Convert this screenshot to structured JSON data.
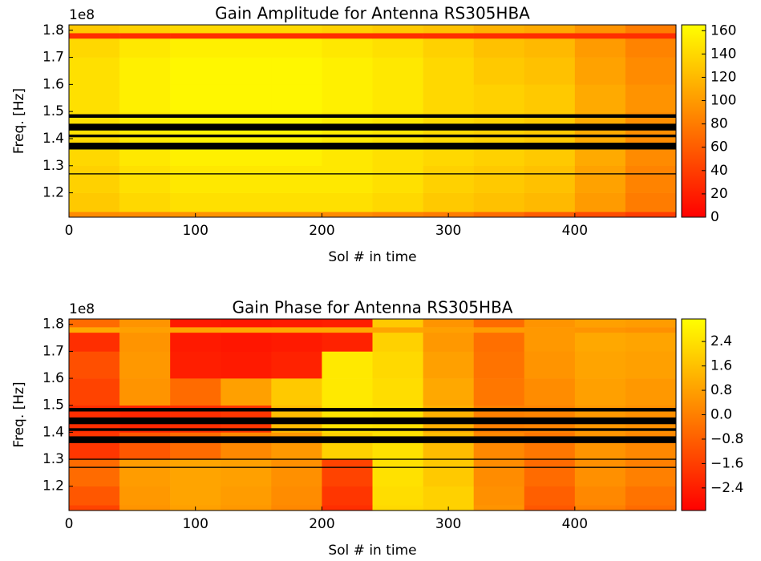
{
  "chart_data": [
    {
      "type": "heatmap",
      "title": "Gain Amplitude for Antenna RS305HBA",
      "x_label": "Sol # in time",
      "y_label": "Freq. [Hz]",
      "y_offset_label": "1e8",
      "xlim": [
        0,
        480
      ],
      "ylim": [
        1.11,
        1.82
      ],
      "xticks": [
        0,
        100,
        200,
        300,
        400
      ],
      "yticks": [
        1.2,
        1.3,
        1.4,
        1.5,
        1.6,
        1.7,
        1.8
      ],
      "clim": [
        0,
        165
      ],
      "cticks": [
        0,
        20,
        40,
        60,
        80,
        100,
        120,
        140,
        160
      ],
      "colormap": [
        "#ff0000",
        "#ffff00"
      ],
      "xbins": [
        0,
        40,
        80,
        120,
        160,
        200,
        240,
        280,
        320,
        360,
        400,
        440,
        480
      ],
      "ybins": [
        1.11,
        1.13,
        1.2,
        1.3,
        1.4,
        1.5,
        1.6,
        1.7,
        1.77,
        1.79,
        1.82
      ],
      "values": [
        [
          90,
          90,
          95,
          95,
          95,
          90,
          85,
          80,
          70,
          60,
          50,
          40
        ],
        [
          130,
          140,
          145,
          145,
          145,
          145,
          140,
          130,
          125,
          120,
          100,
          80
        ],
        [
          135,
          145,
          150,
          150,
          150,
          150,
          145,
          135,
          130,
          125,
          105,
          85
        ],
        [
          140,
          150,
          155,
          155,
          155,
          150,
          145,
          140,
          135,
          130,
          110,
          90
        ],
        [
          145,
          152,
          158,
          158,
          158,
          152,
          148,
          140,
          135,
          130,
          110,
          92
        ],
        [
          145,
          155,
          160,
          160,
          160,
          155,
          150,
          140,
          135,
          130,
          110,
          95
        ],
        [
          145,
          155,
          160,
          160,
          160,
          155,
          150,
          140,
          130,
          125,
          105,
          90
        ],
        [
          140,
          150,
          155,
          155,
          155,
          150,
          145,
          135,
          125,
          120,
          100,
          85
        ],
        [
          30,
          30,
          30,
          30,
          30,
          30,
          30,
          30,
          30,
          30,
          30,
          30
        ],
        [
          130,
          135,
          140,
          140,
          140,
          135,
          130,
          125,
          115,
          110,
          95,
          80
        ]
      ],
      "flagged_bands": [
        [
          1.36,
          1.385
        ],
        [
          1.405,
          1.415
        ],
        [
          1.43,
          1.455
        ],
        [
          1.477,
          1.49
        ],
        [
          1.268,
          1.272
        ]
      ],
      "flag_color": "#000000"
    },
    {
      "type": "heatmap",
      "title": "Gain Phase for Antenna RS305HBA",
      "x_label": "Sol # in time",
      "y_label": "Freq. [Hz]",
      "y_offset_label": "1e8",
      "xlim": [
        0,
        480
      ],
      "ylim": [
        1.11,
        1.82
      ],
      "xticks": [
        0,
        100,
        200,
        300,
        400
      ],
      "yticks": [
        1.2,
        1.3,
        1.4,
        1.5,
        1.6,
        1.7,
        1.8
      ],
      "clim": [
        -3.14,
        3.14
      ],
      "cticks": [
        2.4,
        1.6,
        0.8,
        {
          "value": 0,
          "label": "0.0"
        },
        {
          "value": -0.8,
          "label": "−0.8"
        },
        {
          "value": -1.6,
          "label": "−1.6"
        },
        {
          "value": -2.4,
          "label": "−2.4"
        }
      ],
      "colormap": [
        "#ff0000",
        "#ffff00"
      ],
      "xbins": [
        0,
        40,
        80,
        120,
        160,
        200,
        240,
        280,
        320,
        360,
        400,
        440,
        480
      ],
      "ybins": [
        1.11,
        1.13,
        1.2,
        1.3,
        1.4,
        1.5,
        1.6,
        1.7,
        1.77,
        1.79,
        1.82
      ],
      "values": [
        [
          -1.5,
          0.5,
          0.8,
          0.6,
          0.2,
          -2.0,
          2.2,
          2.0,
          0.5,
          -1.0,
          0.0,
          -0.5
        ],
        [
          -1.0,
          0.6,
          0.9,
          0.7,
          0.3,
          -1.8,
          2.3,
          2.0,
          0.4,
          -0.8,
          0.2,
          -0.3
        ],
        [
          -0.5,
          0.7,
          0.9,
          0.8,
          0.4,
          -1.5,
          2.4,
          1.8,
          0.3,
          -0.5,
          0.4,
          0.0
        ],
        [
          -1.8,
          -1.0,
          -0.5,
          0.2,
          0.6,
          2.0,
          2.4,
          1.5,
          0.2,
          -0.2,
          0.5,
          0.2
        ],
        [
          -2.0,
          -2.2,
          -2.0,
          -1.8,
          1.5,
          2.5,
          2.4,
          1.2,
          0.0,
          0.1,
          0.6,
          0.4
        ],
        [
          -1.5,
          0.5,
          -0.5,
          0.8,
          1.8,
          2.6,
          2.3,
          1.0,
          -0.2,
          0.3,
          0.8,
          0.6
        ],
        [
          -1.2,
          0.6,
          -2.4,
          -2.5,
          -2.3,
          2.6,
          2.2,
          0.8,
          -0.3,
          0.5,
          0.9,
          0.8
        ],
        [
          -2.0,
          0.5,
          -2.5,
          -2.6,
          -2.5,
          -2.3,
          2.0,
          0.6,
          -0.4,
          0.6,
          1.0,
          0.9
        ],
        [
          1.0,
          0.8,
          0.9,
          1.0,
          1.0,
          1.0,
          0.9,
          0.8,
          0.7,
          0.6,
          0.5,
          0.4
        ],
        [
          -0.5,
          0.5,
          -2.5,
          -2.6,
          -2.5,
          -2.4,
          1.8,
          0.5,
          -0.5,
          0.5,
          0.8,
          0.7
        ]
      ],
      "flagged_bands": [
        [
          1.36,
          1.385
        ],
        [
          1.405,
          1.415
        ],
        [
          1.43,
          1.455
        ],
        [
          1.477,
          1.49
        ],
        [
          1.268,
          1.272
        ],
        [
          1.298,
          1.302
        ]
      ],
      "flag_color": "#000000"
    }
  ]
}
